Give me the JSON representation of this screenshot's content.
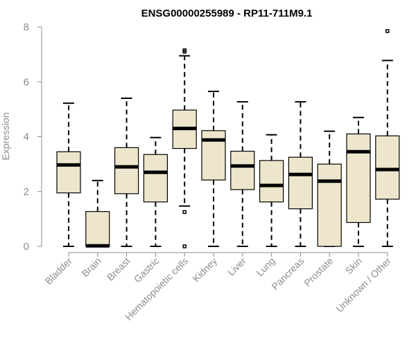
{
  "chart_data": {
    "type": "boxplot",
    "title": "ENSG00000255989 - RP11-711M9.1",
    "xlabel": "",
    "ylabel": "Expression",
    "ylim": [
      0,
      8
    ],
    "yticks": [
      0,
      2,
      4,
      6,
      8
    ],
    "grid": false,
    "categories": [
      "Bladder",
      "Brain",
      "Breast",
      "Gastric",
      "Hematopoietic cells",
      "Kidney",
      "Liver",
      "Lung",
      "Pancreas",
      "Prostate",
      "Skin",
      "Unknown / Other"
    ],
    "boxes": [
      {
        "label": "Bladder",
        "min": 0,
        "q1": 1.95,
        "median": 2.97,
        "q3": 3.45,
        "max": 5.22,
        "outliers": []
      },
      {
        "label": "Brain",
        "min": 0,
        "q1": 0,
        "median": 0.02,
        "q3": 1.27,
        "max": 2.4,
        "outliers": []
      },
      {
        "label": "Breast",
        "min": 0,
        "q1": 1.92,
        "median": 2.9,
        "q3": 3.6,
        "max": 5.4,
        "outliers": []
      },
      {
        "label": "Gastric",
        "min": 0,
        "q1": 1.62,
        "median": 2.7,
        "q3": 3.35,
        "max": 3.97,
        "outliers": []
      },
      {
        "label": "Hematopoietic cells",
        "min": 1.47,
        "q1": 3.57,
        "median": 4.3,
        "q3": 4.97,
        "max": 6.95,
        "outliers": [
          0,
          1.25,
          7.1,
          7.15
        ]
      },
      {
        "label": "Kidney",
        "min": 0,
        "q1": 2.42,
        "median": 3.88,
        "q3": 4.22,
        "max": 5.65,
        "outliers": []
      },
      {
        "label": "Liver",
        "min": 0,
        "q1": 2.07,
        "median": 2.93,
        "q3": 3.47,
        "max": 5.27,
        "outliers": []
      },
      {
        "label": "Lung",
        "min": 0,
        "q1": 1.62,
        "median": 2.22,
        "q3": 3.13,
        "max": 4.07,
        "outliers": []
      },
      {
        "label": "Pancreas",
        "min": 0,
        "q1": 1.37,
        "median": 2.62,
        "q3": 3.25,
        "max": 5.27,
        "outliers": []
      },
      {
        "label": "Prostate",
        "min": 0,
        "q1": 0,
        "median": 2.38,
        "q3": 3.0,
        "max": 4.2,
        "outliers": []
      },
      {
        "label": "Skin",
        "min": 0,
        "q1": 0.87,
        "median": 3.45,
        "q3": 4.1,
        "max": 4.7,
        "outliers": []
      },
      {
        "label": "Unknown / Other",
        "min": 0,
        "q1": 1.72,
        "median": 2.8,
        "q3": 4.03,
        "max": 6.78,
        "outliers": [
          7.85
        ]
      }
    ]
  }
}
